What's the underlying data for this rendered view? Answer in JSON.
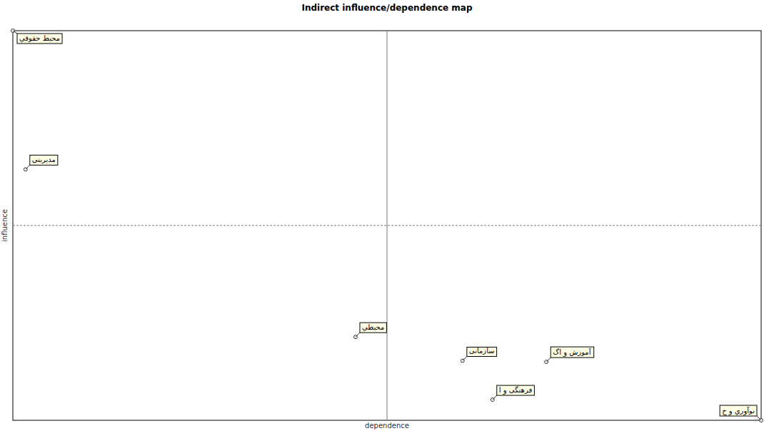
{
  "chart_data": {
    "type": "scatter",
    "title": "Indirect influence/dependence map",
    "x_label": "dependence",
    "y_label": "influence",
    "x": [
      0,
      1.7,
      45.8,
      60.1,
      71.3,
      64.1,
      100
    ],
    "values": [
      100,
      64.4,
      21.4,
      15.3,
      15.0,
      5.3,
      0
    ],
    "labels": [
      "محیط حقوقي",
      "مدیریتي",
      "محیطي",
      "سازمانی",
      "آموزش و اگ",
      "فرهنگی و ا",
      "نوآوري و خ"
    ],
    "xlim": [
      0,
      100
    ],
    "ylim": [
      0,
      100
    ],
    "xticks": [
      50
    ],
    "yticks": [
      50
    ],
    "grid": true,
    "tick_labels": false,
    "marker": "circle"
  }
}
